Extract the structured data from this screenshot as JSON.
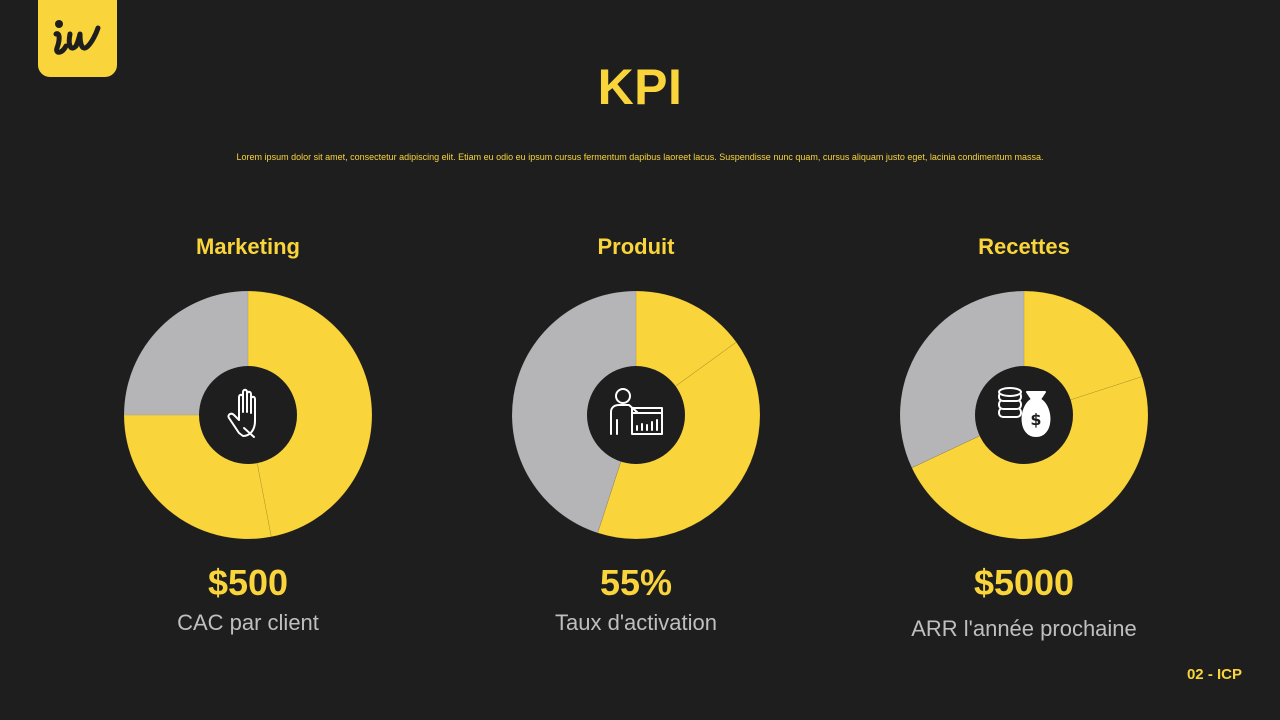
{
  "colors": {
    "background": "#1e1e1e",
    "accent": "#f9d43a",
    "gray": "#b5b5b8",
    "caption": "#bfbfbf"
  },
  "logo": {
    "icon": "iw-logo-icon"
  },
  "header": {
    "title": "KPI",
    "subtitle": "Lorem ipsum dolor sit amet, consectetur adipiscing elit. Etiam eu odio eu ipsum cursus fermentum dapibus laoreet lacus. Suspendisse nunc quam, cursus aliquam justo eget, lacinia condimentum massa."
  },
  "kpis": [
    {
      "heading": "Marketing",
      "value": "$500",
      "caption": "CAC par client",
      "icon": "hand-icon"
    },
    {
      "heading": "Produit",
      "value": "55%",
      "caption": "Taux d'activation",
      "icon": "presenter-chart-icon"
    },
    {
      "heading": "Recettes",
      "value": "$5000",
      "caption": "ARR l'année prochaine",
      "icon": "coins-money-bag-icon"
    }
  ],
  "chart_data": [
    {
      "type": "pie",
      "values": [
        47,
        28,
        25
      ],
      "colors": [
        "#f9d43a",
        "#f9d43a",
        "#b5b5b8"
      ]
    },
    {
      "type": "pie",
      "values": [
        15,
        40,
        45
      ],
      "colors": [
        "#f9d43a",
        "#f9d43a",
        "#b5b5b8"
      ]
    },
    {
      "type": "pie",
      "values": [
        20,
        48,
        32
      ],
      "colors": [
        "#f9d43a",
        "#f9d43a",
        "#b5b5b8"
      ]
    }
  ],
  "footer": {
    "label": "02 - ICP"
  }
}
